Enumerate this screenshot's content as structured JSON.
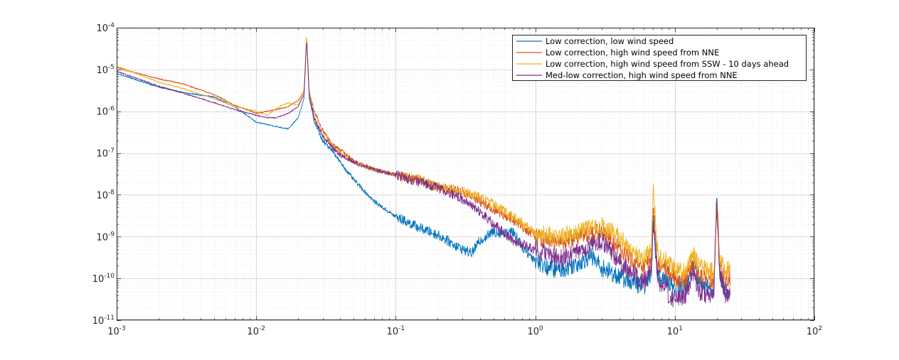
{
  "chart_data": {
    "type": "line",
    "title": "",
    "xlabel": "",
    "ylabel": "",
    "xscale": "log",
    "yscale": "log",
    "xlim": [
      0.001,
      100
    ],
    "ylim": [
      1e-11,
      0.0001
    ],
    "grid": true,
    "minor_grid": true,
    "legend_position": "top-right",
    "x_tick_labels": [
      {
        "value": 0.001,
        "base": "10",
        "exp": "-3"
      },
      {
        "value": 0.01,
        "base": "10",
        "exp": "-2"
      },
      {
        "value": 0.1,
        "base": "10",
        "exp": "-1"
      },
      {
        "value": 1,
        "base": "10",
        "exp": "0"
      },
      {
        "value": 10,
        "base": "10",
        "exp": "1"
      },
      {
        "value": 100,
        "base": "10",
        "exp": "2"
      }
    ],
    "y_tick_labels": [
      {
        "value": 1e-11,
        "base": "10",
        "exp": "-11"
      },
      {
        "value": 1e-10,
        "base": "10",
        "exp": "-10"
      },
      {
        "value": 1e-09,
        "base": "10",
        "exp": "-9"
      },
      {
        "value": 1e-08,
        "base": "10",
        "exp": "-8"
      },
      {
        "value": 1e-07,
        "base": "10",
        "exp": "-7"
      },
      {
        "value": 1e-06,
        "base": "10",
        "exp": "-6"
      },
      {
        "value": 1e-05,
        "base": "10",
        "exp": "-5"
      },
      {
        "value": 0.0001,
        "base": "10",
        "exp": "-4"
      }
    ],
    "series": [
      {
        "name": "Low correction, low wind speed",
        "color": "#0072BD",
        "x": [
          0.001,
          0.002,
          0.003,
          0.005,
          0.007,
          0.01,
          0.012,
          0.014,
          0.017,
          0.02,
          0.022,
          0.023,
          0.024,
          0.026,
          0.03,
          0.035,
          0.04,
          0.05,
          0.07,
          0.1,
          0.15,
          0.2,
          0.3,
          0.35,
          0.4,
          0.5,
          0.6,
          0.7,
          0.8,
          0.9,
          1.0,
          1.2,
          1.5,
          2.0,
          2.5,
          3.0,
          4.0,
          5.0,
          6.0,
          6.8,
          7.0,
          7.5,
          8.0,
          8.5,
          9.0,
          10,
          12,
          13.5,
          15,
          17,
          19,
          20,
          21,
          23,
          25
        ],
        "y": [
          8e-06,
          3.8e-06,
          2.8e-06,
          2.2e-06,
          1.3e-06,
          5.5e-07,
          4.8e-07,
          4.3e-07,
          3.8e-07,
          7e-07,
          2e-06,
          6e-05,
          2e-06,
          6e-07,
          1.9e-07,
          1.2e-07,
          6e-08,
          2.3e-08,
          7e-09,
          3e-09,
          1.6e-09,
          1.1e-09,
          5e-10,
          4e-10,
          8e-10,
          1.3e-09,
          1.2e-09,
          1.3e-09,
          6e-10,
          3.8e-10,
          2.8e-10,
          1.9e-10,
          1.6e-10,
          2.3e-10,
          3.5e-10,
          1.8e-10,
          1.1e-10,
          8e-11,
          6.5e-11,
          1.3e-10,
          3.5e-09,
          1.5e-10,
          7e-11,
          1.3e-10,
          8e-11,
          6e-11,
          6e-11,
          2e-10,
          8e-11,
          6e-11,
          5e-11,
          1.2e-08,
          1.3e-10,
          5e-11,
          5.5e-11
        ]
      },
      {
        "name": "Low correction, high wind speed from NNE",
        "color": "#D95319",
        "x": [
          0.001,
          0.002,
          0.003,
          0.005,
          0.007,
          0.01,
          0.012,
          0.014,
          0.017,
          0.02,
          0.022,
          0.023,
          0.024,
          0.026,
          0.03,
          0.035,
          0.04,
          0.05,
          0.07,
          0.1,
          0.15,
          0.2,
          0.3,
          0.4,
          0.5,
          0.7,
          1.0,
          1.5,
          2.0,
          2.5,
          3.0,
          4.0,
          5.0,
          6.0,
          6.8,
          7.0,
          7.5,
          8.0,
          8.5,
          9.0,
          10,
          12,
          13.5,
          15,
          17,
          19,
          20,
          21,
          23,
          25
        ],
        "y": [
          1.1e-05,
          6e-06,
          4.5e-06,
          2.5e-06,
          1.4e-06,
          9e-07,
          1e-06,
          1.1e-06,
          1.3e-06,
          1.8e-06,
          3e-06,
          6.5e-05,
          3e-06,
          1e-06,
          3.5e-07,
          1.6e-07,
          1.2e-07,
          6.5e-08,
          4e-08,
          3e-08,
          2.2e-08,
          1.5e-08,
          1.2e-08,
          7e-09,
          4.5e-09,
          2.5e-09,
          1e-09,
          7e-10,
          1e-09,
          1.2e-09,
          1.3e-09,
          5e-10,
          2.5e-10,
          1.7e-10,
          3e-10,
          6e-09,
          3e-10,
          1.5e-10,
          2e-10,
          1.4e-10,
          1e-10,
          9e-11,
          2.5e-10,
          1.1e-10,
          1e-10,
          9e-11,
          6e-09,
          2e-10,
          9e-11,
          1.1e-10
        ]
      },
      {
        "name": "Low correction, high wind speed from SSW - 10 days ahead",
        "color": "#EDB120",
        "x": [
          0.001,
          0.002,
          0.003,
          0.005,
          0.007,
          0.01,
          0.012,
          0.014,
          0.017,
          0.02,
          0.022,
          0.023,
          0.024,
          0.026,
          0.03,
          0.035,
          0.04,
          0.05,
          0.07,
          0.1,
          0.15,
          0.2,
          0.3,
          0.4,
          0.5,
          0.7,
          1.0,
          1.5,
          2.0,
          2.5,
          3.0,
          4.0,
          5.0,
          6.0,
          6.8,
          7.0,
          7.5,
          8.0,
          8.5,
          9.0,
          10,
          12,
          13.5,
          15,
          17,
          19,
          20,
          21,
          23,
          25
        ],
        "y": [
          1.2e-05,
          5e-06,
          3.5e-06,
          2e-06,
          1.3e-06,
          1e-06,
          8e-07,
          1.2e-06,
          1.6e-06,
          1.4e-06,
          3e-06,
          7e-05,
          3e-06,
          8e-07,
          2.5e-07,
          1.5e-07,
          1e-07,
          6e-08,
          4e-08,
          3e-08,
          2.3e-08,
          1.6e-08,
          1.2e-08,
          9e-09,
          6e-09,
          3e-09,
          1.2e-09,
          1e-09,
          1.4e-09,
          1.6e-09,
          1.8e-09,
          1e-09,
          4e-10,
          3e-10,
          6e-10,
          2e-08,
          5e-10,
          2.5e-10,
          3e-10,
          2.2e-10,
          1.8e-10,
          1.5e-10,
          4e-10,
          2e-10,
          1.6e-10,
          1.4e-10,
          1e-08,
          3e-10,
          1.5e-10,
          1.8e-10
        ]
      },
      {
        "name": "Med-low correction, high wind speed from NNE",
        "color": "#7E2F8E",
        "x": [
          0.001,
          0.002,
          0.003,
          0.005,
          0.007,
          0.01,
          0.012,
          0.014,
          0.017,
          0.02,
          0.022,
          0.023,
          0.024,
          0.026,
          0.03,
          0.035,
          0.04,
          0.05,
          0.07,
          0.1,
          0.15,
          0.2,
          0.3,
          0.4,
          0.5,
          0.7,
          1.0,
          1.5,
          2.0,
          2.5,
          3.0,
          4.0,
          5.0,
          6.0,
          6.8,
          7.0,
          7.5,
          8.0,
          8.5,
          9.0,
          10,
          12,
          13.5,
          15,
          17,
          19,
          20,
          21,
          23,
          25
        ],
        "y": [
          9e-06,
          4e-06,
          2.7e-06,
          1.6e-06,
          1.1e-06,
          8e-07,
          7e-07,
          7e-07,
          9e-07,
          1.3e-06,
          2.5e-06,
          5e-05,
          2.5e-06,
          7e-07,
          2.5e-07,
          1.4e-07,
          9e-08,
          6e-08,
          4e-08,
          3e-08,
          2e-08,
          1.5e-08,
          8e-09,
          4e-09,
          2e-09,
          8e-10,
          5e-10,
          3e-10,
          4e-10,
          6e-10,
          8e-10,
          2.5e-10,
          1.3e-10,
          8e-11,
          1.5e-10,
          2e-09,
          1.3e-10,
          6e-11,
          9e-11,
          4e-11,
          3e-11,
          4e-11,
          1.3e-10,
          5e-11,
          4e-11,
          3.5e-11,
          8e-09,
          1.2e-10,
          4e-11,
          4.5e-11
        ]
      }
    ]
  }
}
